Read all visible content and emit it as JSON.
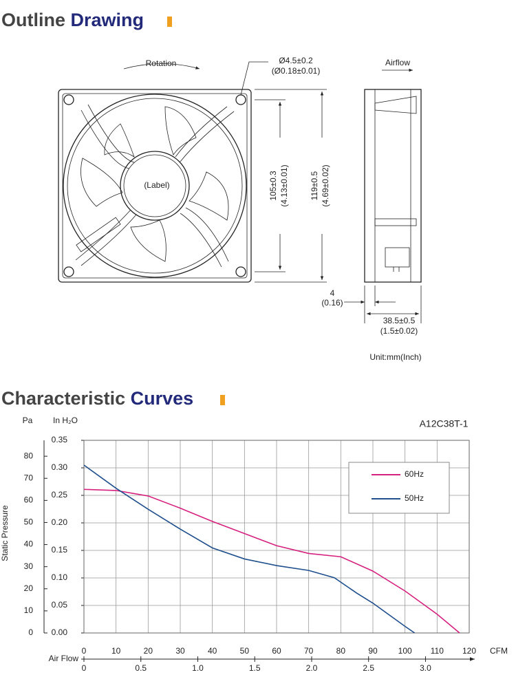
{
  "outline_drawing": {
    "title": [
      "Outline",
      "Drawing"
    ],
    "labels": {
      "rotation": "Rotation",
      "airflow": "Airflow",
      "hole": "Ø4.5±0.2",
      "hole_inch": "(Ø0.18±0.01)",
      "label": "(Label)",
      "hole_spacing": "105±0.3",
      "hole_spacing_inch": "(4.13±0.01)",
      "size": "119±0.5",
      "size_inch": "(4.69±0.02)",
      "flange": "4",
      "flange_inch": "(0.16)",
      "depth": "38.5±0.5",
      "depth_inch": "(1.5±0.02)",
      "unit": "Unit:mm(Inch)"
    }
  },
  "curves_heading": [
    "Characteristic",
    "Curves"
  ],
  "chart_data": {
    "type": "line",
    "title": "A12C38T-1",
    "y_unit": "Pa",
    "y2_unit": "In H₂O",
    "ylabel": "Static Pressure",
    "xlabel": "CFM",
    "x2label": "Air Flow",
    "xlim": [
      0,
      120
    ],
    "xticks": [
      0,
      10,
      20,
      30,
      40,
      50,
      60,
      70,
      80,
      90,
      100,
      110,
      120
    ],
    "x2lim": [
      0,
      3.384
    ],
    "x2ticks": [
      0,
      0.5,
      {
        "value": 1,
        "label": "1.0"
      },
      1.5,
      {
        "value": 2,
        "label": "2.0"
      },
      2.5,
      {
        "value": 3,
        "label": "3.0"
      }
    ],
    "ylim": [
      0,
      87.2
    ],
    "yticks": [
      0,
      10,
      20,
      30,
      40,
      50,
      60,
      70,
      80
    ],
    "y2lim": [
      0,
      0.35
    ],
    "y2ticks": [
      {
        "value": 0,
        "label": "0.00"
      },
      0.05,
      {
        "value": 0.1,
        "label": "0.10"
      },
      0.15,
      {
        "value": 0.2,
        "label": "0.20"
      },
      0.25,
      {
        "value": 0.3,
        "label": "0.30"
      },
      0.35
    ],
    "grid": true,
    "legend": "upper right",
    "series": [
      {
        "name": "60Hz",
        "color": "#d6207e",
        "x": [
          0,
          10,
          20,
          30,
          40,
          50,
          60,
          70,
          80,
          90,
          100,
          110,
          117
        ],
        "values": [
          65,
          64.5,
          62,
          56.5,
          50.5,
          45,
          39.5,
          36,
          34.5,
          28,
          19,
          8.5,
          0
        ]
      },
      {
        "name": "50Hz",
        "color": "#1f4e8c",
        "x": [
          0,
          10,
          20,
          30,
          40,
          50,
          60,
          70,
          78,
          85,
          90,
          100,
          103
        ],
        "values": [
          76,
          65.5,
          56,
          47,
          38.5,
          33.5,
          30.5,
          28.3,
          25,
          18,
          13.5,
          3,
          0
        ]
      }
    ]
  }
}
